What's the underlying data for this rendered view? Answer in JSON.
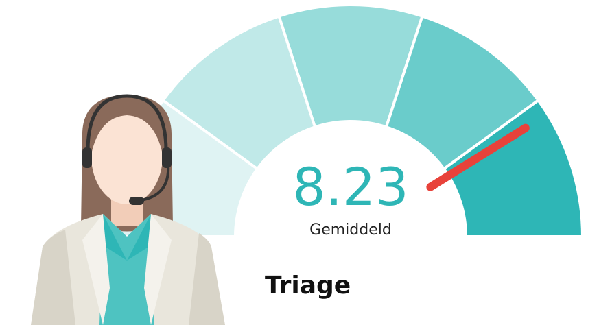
{
  "chart_data": {
    "type": "gauge",
    "title": "Triage",
    "label": "Gemiddeld",
    "value": 8.23,
    "value_color": "#2eb6b6",
    "needle_color": "#e8423a",
    "ylim": [
      0,
      10
    ],
    "bands": [
      0,
      2,
      4,
      6,
      8,
      10
    ],
    "band_colors": [
      "#dff3f3",
      "#c0e9e8",
      "#97dcda",
      "#6acccb",
      "#2eb6b6"
    ]
  }
}
